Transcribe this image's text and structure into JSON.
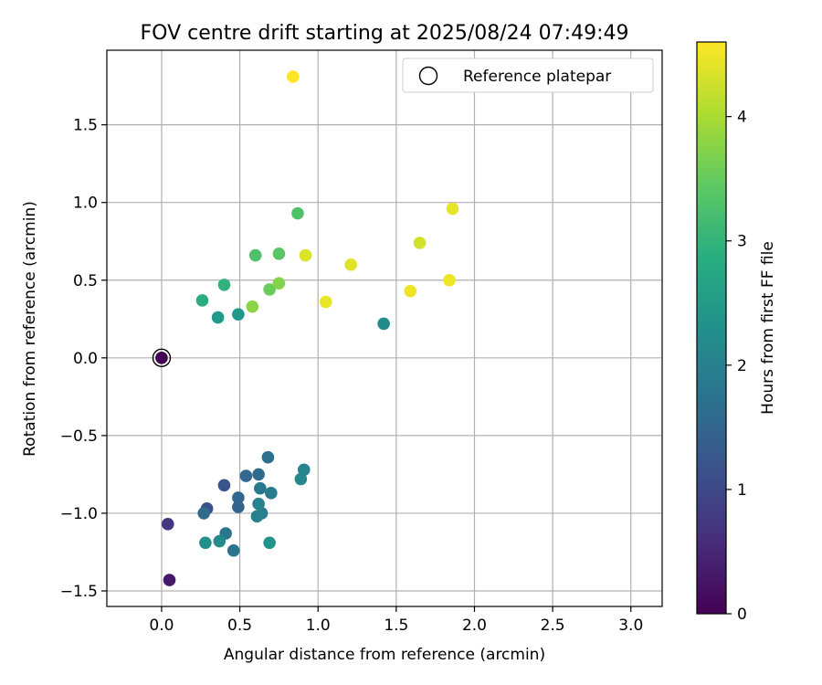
{
  "chart_data": {
    "type": "scatter",
    "title": "FOV centre drift starting at 2025/08/24 07:49:49",
    "xlabel": "Angular distance from reference (arcmin)",
    "ylabel": "Rotation from reference (arcmin)",
    "xlim": [
      -0.35,
      3.2
    ],
    "ylim": [
      -1.6,
      1.98
    ],
    "x_ticks": [
      0.0,
      0.5,
      1.0,
      1.5,
      2.0,
      2.5,
      3.0
    ],
    "x_tick_labels": [
      "0.0",
      "0.5",
      "1.0",
      "1.5",
      "2.0",
      "2.5",
      "3.0"
    ],
    "y_ticks": [
      -1.5,
      -1.0,
      -0.5,
      0.0,
      0.5,
      1.0,
      1.5
    ],
    "y_tick_labels": [
      "−1.5",
      "−1.0",
      "−0.5",
      "0.0",
      "0.5",
      "1.0",
      "1.5"
    ],
    "grid": true,
    "legend": {
      "position": "top-right",
      "entries": [
        {
          "label": "Reference platepar",
          "marker": "open-circle"
        }
      ]
    },
    "reference_point": {
      "x": 0.0,
      "y": 0.0
    },
    "colorbar": {
      "label": "Hours from first FF file",
      "colormap": "viridis",
      "range": [
        0,
        4.6
      ],
      "ticks": [
        0,
        1,
        2,
        3,
        4
      ],
      "tick_labels": [
        "0",
        "1",
        "2",
        "3",
        "4"
      ]
    },
    "points": [
      {
        "x": 0.0,
        "y": 0.0,
        "c": 0.0
      },
      {
        "x": 0.05,
        "y": -1.43,
        "c": 0.3
      },
      {
        "x": 0.04,
        "y": -1.07,
        "c": 0.75
      },
      {
        "x": 0.29,
        "y": -0.97,
        "c": 1.1
      },
      {
        "x": 0.4,
        "y": -0.82,
        "c": 1.2
      },
      {
        "x": 0.27,
        "y": -1.0,
        "c": 1.6
      },
      {
        "x": 0.49,
        "y": -0.96,
        "c": 1.45
      },
      {
        "x": 0.49,
        "y": -0.9,
        "c": 1.5
      },
      {
        "x": 0.54,
        "y": -0.76,
        "c": 1.55
      },
      {
        "x": 0.62,
        "y": -0.75,
        "c": 1.6
      },
      {
        "x": 0.68,
        "y": -0.64,
        "c": 1.65
      },
      {
        "x": 0.46,
        "y": -1.24,
        "c": 1.75
      },
      {
        "x": 0.41,
        "y": -1.13,
        "c": 1.8
      },
      {
        "x": 0.63,
        "y": -0.84,
        "c": 1.85
      },
      {
        "x": 0.7,
        "y": -0.87,
        "c": 1.9
      },
      {
        "x": 0.64,
        "y": -1.0,
        "c": 1.95
      },
      {
        "x": 0.61,
        "y": -1.02,
        "c": 2.0
      },
      {
        "x": 0.62,
        "y": -0.94,
        "c": 2.05
      },
      {
        "x": 0.91,
        "y": -0.72,
        "c": 2.1
      },
      {
        "x": 0.89,
        "y": -0.78,
        "c": 2.15
      },
      {
        "x": 0.37,
        "y": -1.18,
        "c": 2.2
      },
      {
        "x": 0.28,
        "y": -1.19,
        "c": 2.3
      },
      {
        "x": 0.69,
        "y": -1.19,
        "c": 2.4
      },
      {
        "x": 1.42,
        "y": 0.22,
        "c": 2.2
      },
      {
        "x": 0.49,
        "y": 0.28,
        "c": 2.45
      },
      {
        "x": 0.36,
        "y": 0.26,
        "c": 2.5
      },
      {
        "x": 0.26,
        "y": 0.37,
        "c": 2.85
      },
      {
        "x": 0.4,
        "y": 0.47,
        "c": 2.95
      },
      {
        "x": 0.6,
        "y": 0.66,
        "c": 3.3
      },
      {
        "x": 0.75,
        "y": 0.67,
        "c": 3.4
      },
      {
        "x": 0.87,
        "y": 0.93,
        "c": 3.3
      },
      {
        "x": 0.69,
        "y": 0.44,
        "c": 3.55
      },
      {
        "x": 0.75,
        "y": 0.48,
        "c": 3.75
      },
      {
        "x": 0.58,
        "y": 0.33,
        "c": 3.8
      },
      {
        "x": 1.65,
        "y": 0.74,
        "c": 4.3
      },
      {
        "x": 0.92,
        "y": 0.66,
        "c": 4.35
      },
      {
        "x": 1.86,
        "y": 0.96,
        "c": 4.45
      },
      {
        "x": 1.21,
        "y": 0.6,
        "c": 4.4
      },
      {
        "x": 1.05,
        "y": 0.36,
        "c": 4.45
      },
      {
        "x": 1.59,
        "y": 0.43,
        "c": 4.5
      },
      {
        "x": 1.84,
        "y": 0.5,
        "c": 4.5
      },
      {
        "x": 0.84,
        "y": 1.81,
        "c": 4.6
      }
    ]
  }
}
